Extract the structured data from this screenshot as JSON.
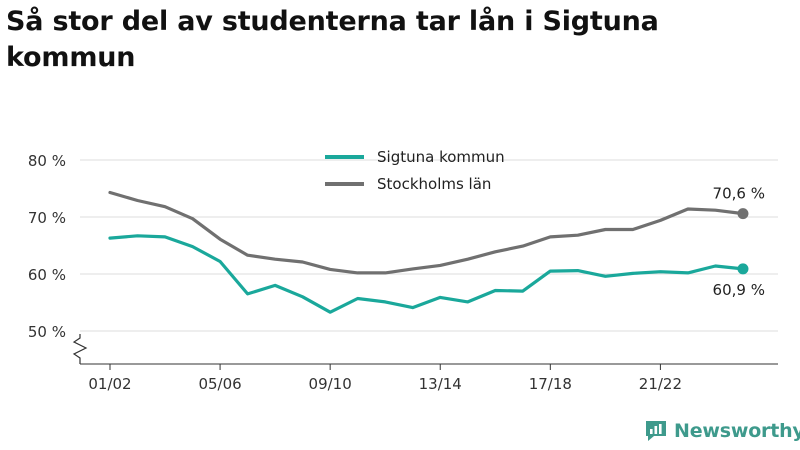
{
  "title": "Så stor del av studenterna tar lån i Sigtuna kommun",
  "brand": {
    "name": "Newsworthy",
    "color": "#3e9a8c"
  },
  "chart_data": {
    "type": "line",
    "x": [
      "01/02",
      "02/03",
      "03/04",
      "04/05",
      "05/06",
      "06/07",
      "07/08",
      "08/09",
      "09/10",
      "10/11",
      "11/12",
      "12/13",
      "13/14",
      "14/15",
      "15/16",
      "16/17",
      "17/18",
      "18/19",
      "19/20",
      "20/21",
      "21/22",
      "22/23",
      "23/24",
      "24/25"
    ],
    "x_tick_labels": [
      "01/02",
      "05/06",
      "09/10",
      "13/14",
      "17/18",
      "21/22"
    ],
    "ylim": [
      50,
      80
    ],
    "y_ticks": [
      50,
      60,
      70,
      80
    ],
    "y_tick_labels": [
      "50 %",
      "60 %",
      "70 %",
      "80 %"
    ],
    "y_axis_break": true,
    "grid": true,
    "legend_position": "top-center",
    "series": [
      {
        "name": "Sigtuna kommun",
        "color": "#1aa89b",
        "values": [
          66.3,
          66.7,
          66.5,
          64.8,
          62.2,
          56.5,
          58.0,
          56.0,
          53.3,
          55.7,
          55.1,
          54.1,
          55.9,
          55.1,
          57.1,
          57.0,
          60.5,
          60.6,
          59.6,
          60.1,
          60.4,
          60.2,
          61.4,
          60.9
        ],
        "end_label": "60,9 %"
      },
      {
        "name": "Stockholms län",
        "color": "#707070",
        "values": [
          74.3,
          72.9,
          71.8,
          69.7,
          66.1,
          63.3,
          62.6,
          62.1,
          60.8,
          60.2,
          60.2,
          60.9,
          61.5,
          62.6,
          63.9,
          64.9,
          66.5,
          66.8,
          67.8,
          67.8,
          69.4,
          71.4,
          71.2,
          70.6
        ],
        "end_label": "70,6 %"
      }
    ]
  }
}
